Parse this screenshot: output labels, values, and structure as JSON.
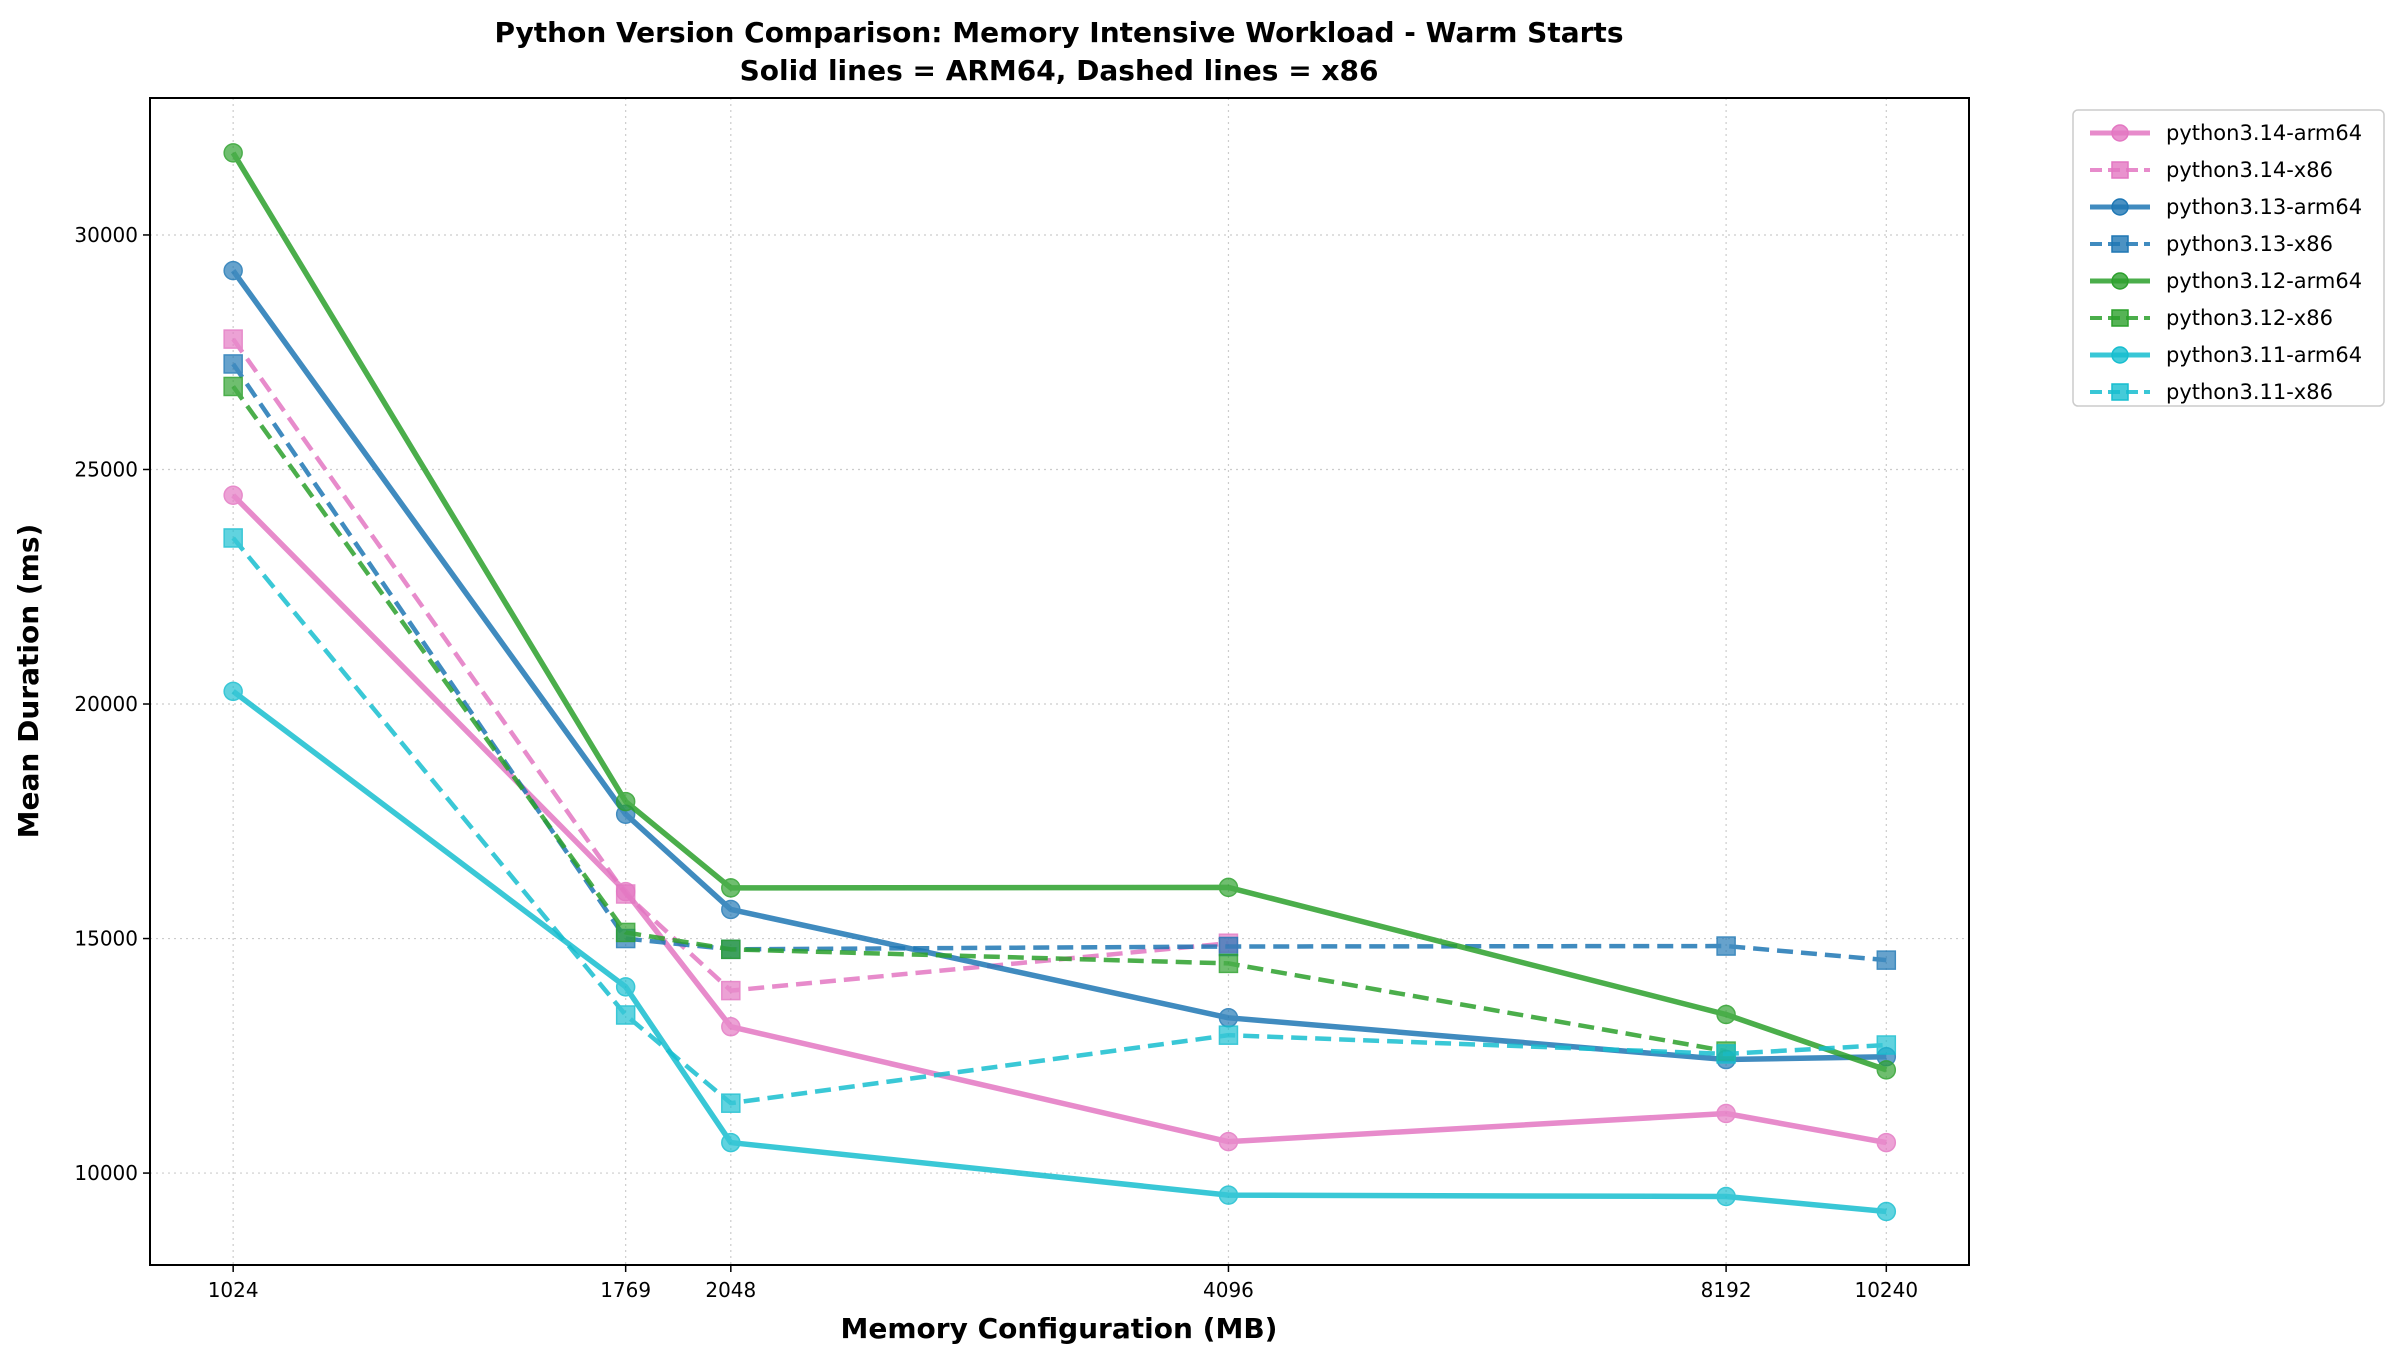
{
  "chart_data": {
    "type": "line",
    "title": "Python Version Comparison: Memory Intensive Workload - Warm Starts",
    "subtitle": "Solid lines = ARM64, Dashed lines = x86",
    "xlabel": "Memory Configuration (MB)",
    "ylabel": "Mean Duration (ms)",
    "x_scale": "log2",
    "xlim": [
      912,
      11490
    ],
    "ylim": [
      8040,
      32920
    ],
    "x_ticks": [
      1024,
      1769,
      2048,
      4096,
      8192,
      10240
    ],
    "y_ticks": [
      10000,
      15000,
      20000,
      25000,
      30000
    ],
    "grid": true,
    "legend_placement": "outside-top-right",
    "x": [
      1024,
      1769,
      2048,
      4096,
      8192,
      10240
    ],
    "series": [
      {
        "name": "python3.14-arm64",
        "color": "#e377c2",
        "style": "solid",
        "marker": "circle",
        "values": [
          24450,
          16000,
          13120,
          10670,
          11270,
          10650
        ]
      },
      {
        "name": "python3.14-x86",
        "color": "#e377c2",
        "style": "dashed",
        "marker": "square",
        "values": [
          27780,
          15950,
          13890,
          14900,
          null,
          null
        ]
      },
      {
        "name": "python3.13-arm64",
        "color": "#1f77b4",
        "style": "solid",
        "marker": "circle",
        "values": [
          29240,
          17650,
          15620,
          13310,
          12420,
          12480
        ]
      },
      {
        "name": "python3.13-x86",
        "color": "#1f77b4",
        "style": "dashed",
        "marker": "square",
        "values": [
          27250,
          15000,
          14770,
          14830,
          14840,
          14540
        ]
      },
      {
        "name": "python3.12-arm64",
        "color": "#2ca02c",
        "style": "solid",
        "marker": "circle",
        "values": [
          31750,
          17920,
          16080,
          16090,
          13380,
          12200
        ]
      },
      {
        "name": "python3.12-x86",
        "color": "#2ca02c",
        "style": "dashed",
        "marker": "square",
        "values": [
          26770,
          15130,
          14770,
          14470,
          12600,
          null
        ]
      },
      {
        "name": "python3.11-arm64",
        "color": "#17becf",
        "style": "solid",
        "marker": "circle",
        "values": [
          20270,
          13970,
          10650,
          9530,
          9500,
          9180
        ]
      },
      {
        "name": "python3.11-x86",
        "color": "#17becf",
        "style": "dashed",
        "marker": "square",
        "values": [
          23540,
          13370,
          11490,
          12940,
          12540,
          12730
        ]
      }
    ]
  }
}
